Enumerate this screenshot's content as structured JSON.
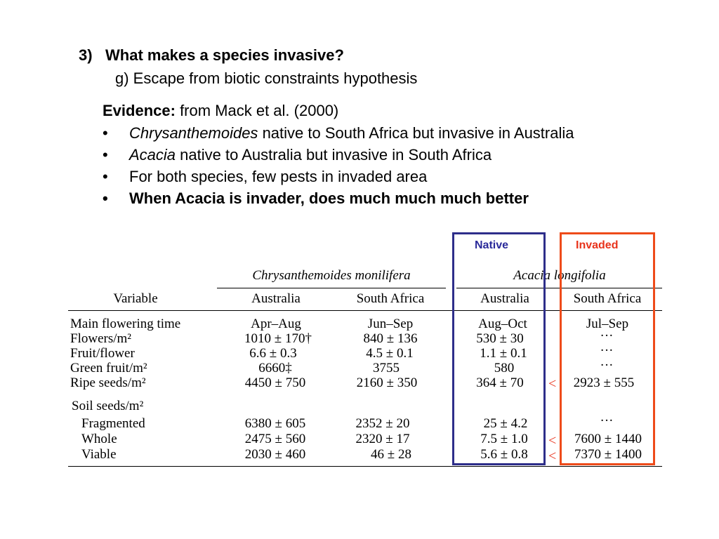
{
  "heading": {
    "number": "3)",
    "text": "What makes a species invasive?"
  },
  "subheading": "g) Escape from biotic constraints hypothesis",
  "evidence": {
    "label": "Evidence:",
    "text": "from Mack et al. (2000)"
  },
  "bullets": {
    "b1": {
      "italic": "Chrysanthemoides",
      "rest": "native to South Africa but invasive in Australia"
    },
    "b2": {
      "italic": "Acacia",
      "rest": "native to Australia but invasive in South Africa"
    },
    "b3": {
      "text": "For both species, few pests in invaded area"
    },
    "b4": {
      "text": "When Acacia is invader, does much much much better"
    },
    "marker": "•"
  },
  "labels": {
    "native": "Native",
    "invaded": "Invaded",
    "less_than": "<"
  },
  "colors": {
    "native": "#2e2e8a",
    "invaded": "#ee4b1a"
  },
  "table": {
    "species": [
      "Chrysanthemoides monilifera",
      "Acacia longifolia"
    ],
    "headers": [
      "Variable",
      "Australia",
      "South Africa",
      "Australia",
      "South Africa"
    ],
    "rows": [
      {
        "label": "Main flowering time",
        "values": [
          "Apr–Aug",
          "Jun–Sep",
          "Aug–Oct",
          "Jul–Sep"
        ]
      },
      {
        "label": "Flowers/m²",
        "values": [
          "1010 ± 170†",
          "840 ± 136",
          "530 ± 30",
          "···"
        ]
      },
      {
        "label": "Fruit/flower",
        "values": [
          "6.6 ± 0.3",
          "4.5 ± 0.1",
          "1.1 ± 0.1",
          "···"
        ]
      },
      {
        "label": "Green fruit/m²",
        "values": [
          "6660‡",
          "3755",
          "580",
          "···"
        ]
      },
      {
        "label": "Ripe seeds/m²",
        "values": [
          "4450 ± 750",
          "2160 ± 350",
          "364 ± 70",
          "2923 ± 555"
        ]
      },
      {
        "label": "Soil seeds/m²",
        "values": [
          "",
          "",
          "",
          ""
        ]
      },
      {
        "label": "Fragmented",
        "values": [
          "6380 ± 605",
          "2352 ± 20",
          "25 ± 4.2",
          "···"
        ]
      },
      {
        "label": "Whole",
        "values": [
          "2475 ± 560",
          "2320 ± 17",
          "7.5 ± 1.0",
          "7600 ± 1440"
        ]
      },
      {
        "label": "Viable",
        "values": [
          "2030 ± 460",
          "46 ± 28",
          "5.6 ± 0.8",
          "7370 ± 1400"
        ]
      }
    ]
  }
}
